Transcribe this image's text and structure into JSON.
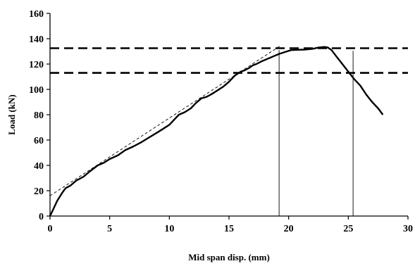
{
  "chart_data": {
    "type": "line",
    "title": "",
    "xlabel": "Mid span disp. (mm)",
    "ylabel": "Load (kN)",
    "xlim": [
      0,
      30
    ],
    "ylim": [
      0,
      160
    ],
    "x_ticks": [
      0,
      5,
      10,
      15,
      20,
      25,
      30
    ],
    "y_ticks": [
      0,
      20,
      40,
      60,
      80,
      100,
      120,
      140,
      160
    ],
    "x_tick_labels": [
      "0",
      "5",
      "10",
      "15",
      "20",
      "25",
      "30"
    ],
    "y_tick_labels": [
      "0",
      "20",
      "40",
      "60",
      "80",
      "100",
      "120",
      "140",
      "160"
    ],
    "grid": false,
    "legend": "none",
    "series": [
      {
        "style": "solid-thick",
        "color": "#000000",
        "x": [
          0,
          0.3,
          0.6,
          1.0,
          1.3,
          1.7,
          2.2,
          2.8,
          3.3,
          4.0,
          4.5,
          5.0,
          5.7,
          6.3,
          7.0,
          7.6,
          8.3,
          9.0,
          9.5,
          10.0,
          10.4,
          10.8,
          11.3,
          11.8,
          12.2,
          12.7,
          13.1,
          13.5,
          14.0,
          14.5,
          15.0,
          15.5,
          16.0,
          16.3,
          16.7,
          17.0,
          17.3,
          17.7,
          18.2,
          18.7,
          19.2,
          19.7,
          20.2,
          20.7,
          21.3,
          22.0,
          22.5,
          23.0,
          23.3,
          23.6,
          24.0,
          24.5,
          25.0,
          25.5,
          26.0,
          26.5,
          27.0,
          27.5,
          27.9
        ],
        "y": [
          0,
          6,
          12,
          18,
          22,
          24,
          28,
          31,
          35,
          40,
          42,
          45,
          48,
          52,
          55,
          58,
          62,
          66,
          69,
          72,
          76,
          80,
          82,
          85,
          89,
          93,
          94,
          96,
          99,
          102,
          106,
          111,
          114,
          115,
          117,
          119,
          120,
          122,
          124,
          126,
          128,
          129.5,
          131,
          131.2,
          131.4,
          132,
          133,
          133.5,
          133,
          131,
          126,
          120,
          114,
          108,
          103,
          96,
          90,
          85,
          80
        ]
      },
      {
        "style": "dashed-thin",
        "color": "#000000",
        "x": [
          0,
          19.4
        ],
        "y": [
          16,
          135
        ]
      }
    ],
    "reference_lines": [
      {
        "orientation": "horizontal",
        "style": "dashed-thick",
        "value": 132.5
      },
      {
        "orientation": "horizontal",
        "style": "dashed-thick",
        "value": 113
      },
      {
        "orientation": "vertical",
        "style": "solid-thin",
        "value": 19.2,
        "from": 0,
        "to": 131
      },
      {
        "orientation": "vertical",
        "style": "solid-thin",
        "value": 25.4,
        "from": 0,
        "to": 130.5
      }
    ]
  }
}
